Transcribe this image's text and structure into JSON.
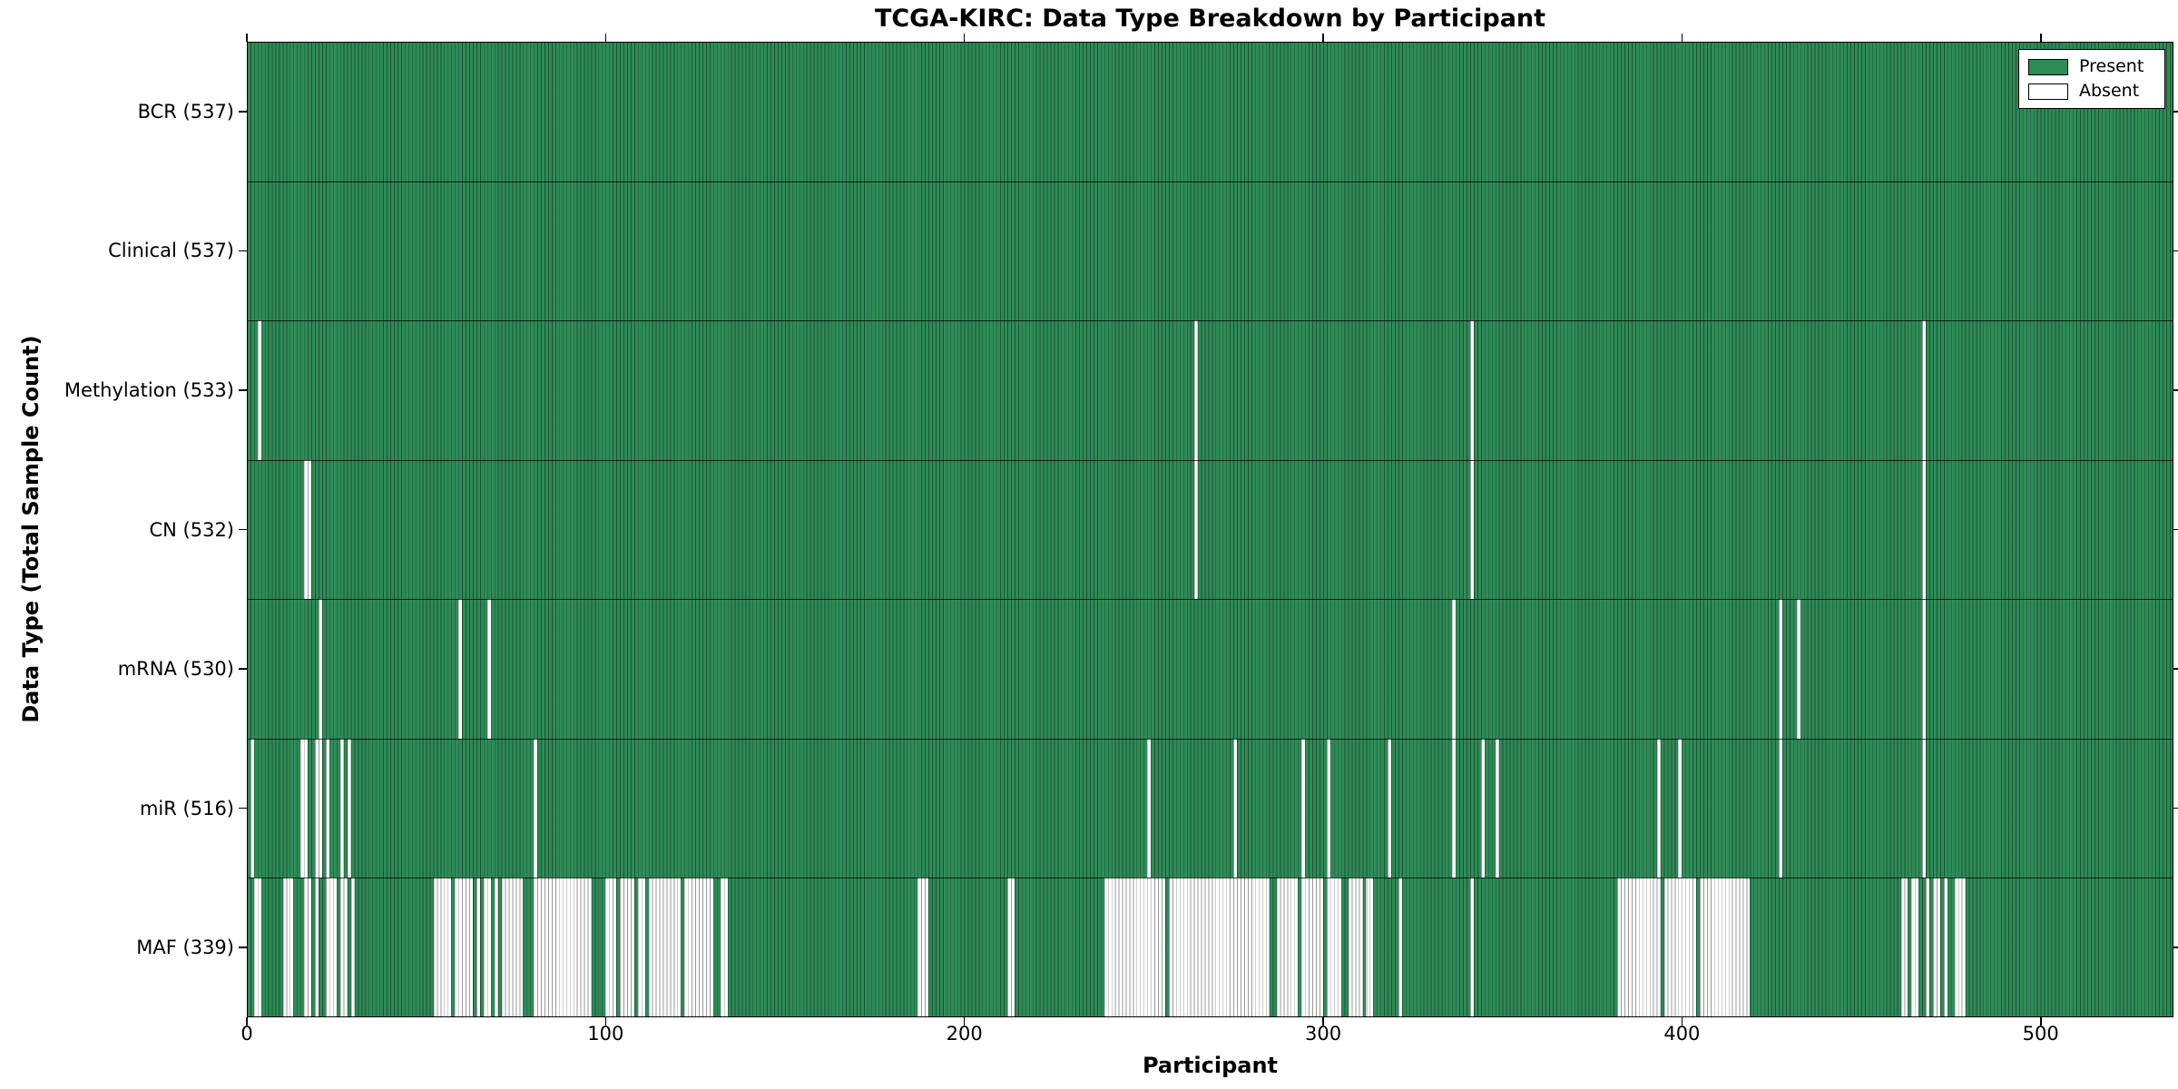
{
  "title": "TCGA-KIRC: Data Type Breakdown by Participant",
  "chart_data": {
    "type": "heatmap",
    "title": "TCGA-KIRC: Data Type Breakdown by Participant",
    "xlabel": "Participant",
    "ylabel": "Data Type (Total Sample Count)",
    "x_ticks": [
      0,
      100,
      200,
      300,
      400,
      500
    ],
    "x_domain": [
      0,
      537
    ],
    "total_participants": 537,
    "grid": false,
    "legend": {
      "position": "upper-right",
      "entries": [
        {
          "label": "Present",
          "color": "#2e8b57"
        },
        {
          "label": "Absent",
          "color": "#ffffff"
        }
      ]
    },
    "colors": {
      "present_fill": "#2e8b57",
      "absent_fill": "#ffffff",
      "bar_edge": "#1c5738",
      "axis": "#000000"
    },
    "rows": [
      {
        "label": "BCR",
        "count": 537,
        "tick_label": "BCR (537)",
        "absent_ranges": []
      },
      {
        "label": "Clinical",
        "count": 537,
        "tick_label": "Clinical (537)",
        "absent_ranges": []
      },
      {
        "label": "Methylation",
        "count": 533,
        "tick_label": "Methylation (533)",
        "absent_ranges": [
          [
            3,
            3
          ],
          [
            264,
            264
          ],
          [
            341,
            341
          ],
          [
            467,
            467
          ]
        ]
      },
      {
        "label": "CN",
        "count": 532,
        "tick_label": "CN (532)",
        "absent_ranges": [
          [
            16,
            17
          ],
          [
            264,
            264
          ],
          [
            341,
            341
          ],
          [
            467,
            467
          ]
        ]
      },
      {
        "label": "mRNA",
        "count": 530,
        "tick_label": "mRNA (530)",
        "absent_ranges": [
          [
            20,
            20
          ],
          [
            59,
            59
          ],
          [
            67,
            67
          ],
          [
            336,
            336
          ],
          [
            427,
            427
          ],
          [
            432,
            432
          ],
          [
            467,
            467
          ]
        ]
      },
      {
        "label": "miR",
        "count": 516,
        "tick_label": "miR (516)",
        "absent_ranges": [
          [
            1,
            1
          ],
          [
            15,
            16
          ],
          [
            19,
            20
          ],
          [
            22,
            22
          ],
          [
            26,
            26
          ],
          [
            28,
            28
          ],
          [
            80,
            80
          ],
          [
            251,
            251
          ],
          [
            275,
            275
          ],
          [
            294,
            294
          ],
          [
            301,
            301
          ],
          [
            318,
            318
          ],
          [
            336,
            336
          ],
          [
            344,
            344
          ],
          [
            348,
            348
          ],
          [
            393,
            393
          ],
          [
            399,
            399
          ],
          [
            427,
            427
          ],
          [
            467,
            467
          ]
        ]
      },
      {
        "label": "MAF",
        "count": 339,
        "tick_label": "MAF (339)",
        "absent_ranges": [
          [
            2,
            3
          ],
          [
            10,
            12
          ],
          [
            16,
            17
          ],
          [
            19,
            19
          ],
          [
            22,
            24
          ],
          [
            26,
            27
          ],
          [
            29,
            29
          ],
          [
            52,
            56
          ],
          [
            58,
            62
          ],
          [
            64,
            64
          ],
          [
            66,
            67
          ],
          [
            69,
            69
          ],
          [
            71,
            76
          ],
          [
            80,
            95
          ],
          [
            100,
            102
          ],
          [
            104,
            107
          ],
          [
            109,
            110
          ],
          [
            112,
            120
          ],
          [
            122,
            129
          ],
          [
            132,
            133
          ],
          [
            187,
            189
          ],
          [
            212,
            213
          ],
          [
            239,
            255
          ],
          [
            257,
            284
          ],
          [
            287,
            292
          ],
          [
            294,
            299
          ],
          [
            301,
            304
          ],
          [
            307,
            310
          ],
          [
            312,
            313
          ],
          [
            321,
            321
          ],
          [
            341,
            341
          ],
          [
            382,
            393
          ],
          [
            395,
            403
          ],
          [
            405,
            418
          ],
          [
            461,
            462
          ],
          [
            464,
            465
          ],
          [
            468,
            468
          ],
          [
            470,
            471
          ],
          [
            473,
            473
          ],
          [
            476,
            478
          ]
        ]
      }
    ]
  }
}
